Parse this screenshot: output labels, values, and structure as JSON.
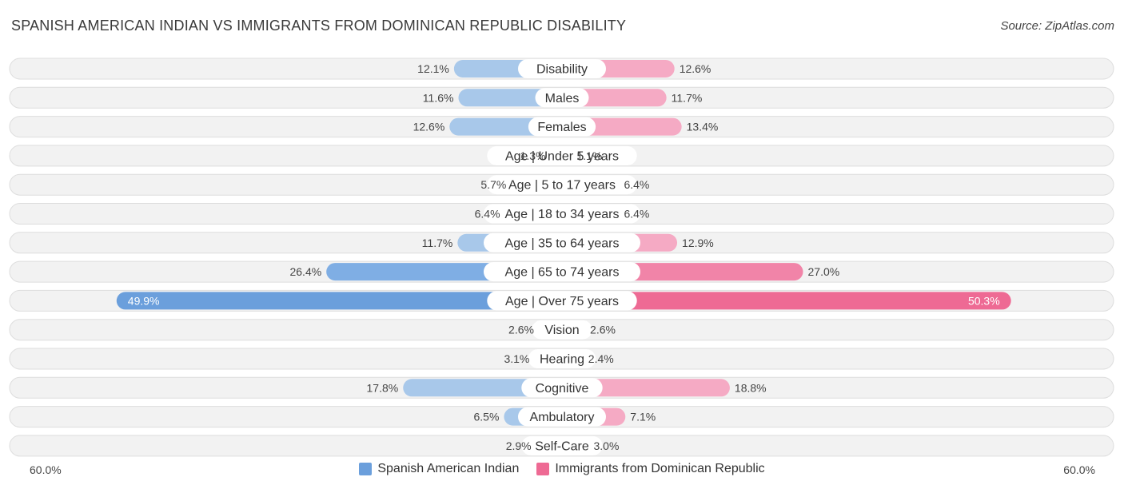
{
  "header": {
    "title": "SPANISH AMERICAN INDIAN VS IMMIGRANTS FROM DOMINICAN REPUBLIC DISABILITY",
    "source": "Source: ZipAtlas.com"
  },
  "colors": {
    "left_light": "#a8c8ea",
    "left_dark": "#6b9fdc",
    "right_light": "#f5aac4",
    "right_dark": "#ee6a94"
  },
  "chart_data": {
    "type": "bar",
    "orientation": "diverging-horizontal",
    "title": "SPANISH AMERICAN INDIAN VS IMMIGRANTS FROM DOMINICAN REPUBLIC DISABILITY",
    "categories": [
      "Disability",
      "Males",
      "Females",
      "Age | Under 5 years",
      "Age | 5 to 17 years",
      "Age | 18 to 34 years",
      "Age | 35 to 64 years",
      "Age | 65 to 74 years",
      "Age | Over 75 years",
      "Vision",
      "Hearing",
      "Cognitive",
      "Ambulatory",
      "Self-Care"
    ],
    "series": [
      {
        "name": "Spanish American Indian",
        "values": [
          12.1,
          11.6,
          12.6,
          1.3,
          5.7,
          6.4,
          11.7,
          26.4,
          49.9,
          2.6,
          3.1,
          17.8,
          6.5,
          2.9
        ],
        "labels": [
          "12.1%",
          "11.6%",
          "12.6%",
          "1.3%",
          "5.7%",
          "6.4%",
          "11.7%",
          "26.4%",
          "49.9%",
          "2.6%",
          "3.1%",
          "17.8%",
          "6.5%",
          "2.9%"
        ]
      },
      {
        "name": "Immigrants from Dominican Republic",
        "values": [
          12.6,
          11.7,
          13.4,
          1.1,
          6.4,
          6.4,
          12.9,
          27.0,
          50.3,
          2.6,
          2.4,
          18.8,
          7.1,
          3.0
        ],
        "labels": [
          "12.6%",
          "11.7%",
          "13.4%",
          "1.1%",
          "6.4%",
          "6.4%",
          "12.9%",
          "27.0%",
          "50.3%",
          "2.6%",
          "2.4%",
          "18.8%",
          "7.1%",
          "3.0%"
        ]
      }
    ],
    "xlim": [
      -60,
      60
    ],
    "axis_min_label": "60.0%",
    "axis_max_label": "60.0%",
    "legend": "bottom-center"
  }
}
